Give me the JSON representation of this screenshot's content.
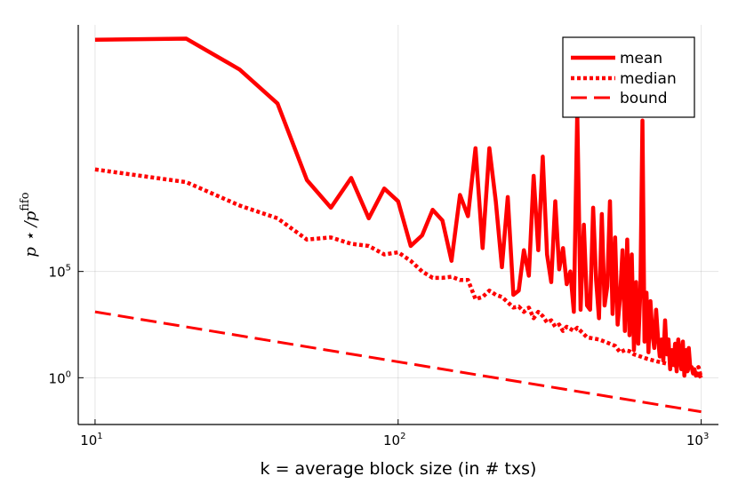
{
  "chart_data": {
    "type": "line",
    "title": "",
    "xlabel": "k = average block size (in # txs)",
    "ylabel": "p⋆ / p^fifo",
    "ylabel_base": "p ⋆ /p",
    "ylabel_sup": "fifo",
    "xscale": "log",
    "yscale": "log",
    "xlim": [
      8.8,
      1140
    ],
    "ylim_log10": [
      -2.2,
      16.6
    ],
    "grid": true,
    "x_ticks": [
      {
        "value": 10,
        "base": "10",
        "exp": "1"
      },
      {
        "value": 100,
        "base": "10",
        "exp": "2"
      },
      {
        "value": 1000,
        "base": "10",
        "exp": "3"
      }
    ],
    "y_ticks": [
      {
        "value": 1,
        "base": "10",
        "exp": "0"
      },
      {
        "value": 100000,
        "base": "10",
        "exp": "5"
      }
    ],
    "legend": {
      "position": "top-right",
      "entries": [
        {
          "label": "mean",
          "style": "solid"
        },
        {
          "label": "median",
          "style": "dotted"
        },
        {
          "label": "bound",
          "style": "dashed"
        }
      ]
    },
    "color": "#ff0000",
    "series": [
      {
        "name": "mean",
        "style": "solid",
        "points": [
          [
            10,
            15.9
          ],
          [
            20,
            15.95
          ],
          [
            30,
            14.5
          ],
          [
            40,
            12.9
          ],
          [
            50,
            9.3
          ],
          [
            60,
            8.0
          ],
          [
            70,
            9.4
          ],
          [
            80,
            7.5
          ],
          [
            90,
            8.9
          ],
          [
            100,
            8.3
          ],
          [
            110,
            6.2
          ],
          [
            120,
            6.7
          ],
          [
            130,
            7.9
          ],
          [
            140,
            7.4
          ],
          [
            150,
            5.5
          ],
          [
            160,
            8.6
          ],
          [
            170,
            7.6
          ],
          [
            180,
            10.8
          ],
          [
            190,
            6.1
          ],
          [
            200,
            10.8
          ],
          [
            210,
            8.3
          ],
          [
            220,
            5.2
          ],
          [
            230,
            8.5
          ],
          [
            240,
            3.9
          ],
          [
            250,
            4.1
          ],
          [
            260,
            6.0
          ],
          [
            270,
            4.8
          ],
          [
            280,
            9.5
          ],
          [
            290,
            6.0
          ],
          [
            300,
            10.4
          ],
          [
            310,
            5.8
          ],
          [
            320,
            4.5
          ],
          [
            330,
            8.3
          ],
          [
            340,
            5.1
          ],
          [
            350,
            6.1
          ],
          [
            360,
            4.4
          ],
          [
            370,
            5.0
          ],
          [
            380,
            3.1
          ],
          [
            390,
            12.5
          ],
          [
            400,
            3.2
          ],
          [
            410,
            7.2
          ],
          [
            420,
            3.4
          ],
          [
            430,
            3.2
          ],
          [
            440,
            8.0
          ],
          [
            450,
            4.6
          ],
          [
            460,
            2.8
          ],
          [
            470,
            7.7
          ],
          [
            480,
            3.4
          ],
          [
            490,
            4.3
          ],
          [
            500,
            8.3
          ],
          [
            510,
            3.0
          ],
          [
            520,
            6.6
          ],
          [
            530,
            2.5
          ],
          [
            540,
            3.8
          ],
          [
            550,
            6.0
          ],
          [
            560,
            2.2
          ],
          [
            570,
            6.5
          ],
          [
            580,
            2.0
          ],
          [
            590,
            5.8
          ],
          [
            600,
            1.3
          ],
          [
            610,
            4.5
          ],
          [
            620,
            1.6
          ],
          [
            630,
            4.1
          ],
          [
            640,
            12.1
          ],
          [
            650,
            1.7
          ],
          [
            660,
            4.0
          ],
          [
            670,
            1.2
          ],
          [
            680,
            3.6
          ],
          [
            690,
            2.1
          ],
          [
            700,
            1.4
          ],
          [
            710,
            3.2
          ],
          [
            720,
            1.9
          ],
          [
            730,
            1.0
          ],
          [
            740,
            1.8
          ],
          [
            750,
            0.8
          ],
          [
            760,
            2.7
          ],
          [
            770,
            1.1
          ],
          [
            780,
            1.8
          ],
          [
            790,
            0.4
          ],
          [
            800,
            1.3
          ],
          [
            810,
            0.6
          ],
          [
            820,
            1.6
          ],
          [
            830,
            0.3
          ],
          [
            840,
            1.8
          ],
          [
            850,
            1.0
          ],
          [
            860,
            0.4
          ],
          [
            870,
            1.7
          ],
          [
            880,
            0.1
          ],
          [
            890,
            1.3
          ],
          [
            900,
            0.3
          ],
          [
            910,
            1.4
          ],
          [
            920,
            0.5
          ],
          [
            930,
            0.5
          ],
          [
            940,
            0.2
          ],
          [
            950,
            0.4
          ],
          [
            960,
            0.1
          ],
          [
            970,
            0.2
          ],
          [
            980,
            0.1
          ],
          [
            990,
            0.1
          ],
          [
            1000,
            0.0
          ]
        ]
      },
      {
        "name": "median",
        "style": "dotted",
        "points": [
          [
            10,
            9.8
          ],
          [
            20,
            9.2
          ],
          [
            30,
            8.1
          ],
          [
            40,
            7.5
          ],
          [
            50,
            6.5
          ],
          [
            60,
            6.6
          ],
          [
            70,
            6.3
          ],
          [
            80,
            6.2
          ],
          [
            90,
            5.8
          ],
          [
            100,
            5.9
          ],
          [
            110,
            5.5
          ],
          [
            120,
            5.0
          ],
          [
            130,
            4.7
          ],
          [
            140,
            4.7
          ],
          [
            150,
            4.75
          ],
          [
            160,
            4.6
          ],
          [
            170,
            4.6
          ],
          [
            180,
            3.7
          ],
          [
            190,
            3.8
          ],
          [
            200,
            4.1
          ],
          [
            210,
            3.9
          ],
          [
            220,
            3.8
          ],
          [
            230,
            3.55
          ],
          [
            240,
            3.3
          ],
          [
            250,
            3.35
          ],
          [
            260,
            3.1
          ],
          [
            270,
            3.3
          ],
          [
            280,
            2.8
          ],
          [
            290,
            3.1
          ],
          [
            300,
            2.9
          ],
          [
            310,
            2.6
          ],
          [
            320,
            2.7
          ],
          [
            330,
            2.4
          ],
          [
            340,
            2.5
          ],
          [
            350,
            2.2
          ],
          [
            360,
            2.4
          ],
          [
            370,
            2.3
          ],
          [
            380,
            2.2
          ],
          [
            390,
            2.35
          ],
          [
            400,
            2.2
          ],
          [
            420,
            1.9
          ],
          [
            440,
            1.85
          ],
          [
            460,
            1.8
          ],
          [
            480,
            1.7
          ],
          [
            500,
            1.6
          ],
          [
            520,
            1.5
          ],
          [
            540,
            1.2
          ],
          [
            560,
            1.3
          ],
          [
            580,
            1.25
          ],
          [
            600,
            1.1
          ],
          [
            630,
            1.0
          ],
          [
            660,
            0.9
          ],
          [
            700,
            0.8
          ],
          [
            750,
            0.7
          ],
          [
            800,
            0.6
          ],
          [
            850,
            0.5
          ],
          [
            900,
            0.4
          ],
          [
            950,
            0.3
          ],
          [
            980,
            0.5
          ],
          [
            1000,
            0.0
          ]
        ]
      },
      {
        "name": "bound",
        "style": "dashed",
        "points": [
          [
            10,
            3.1
          ],
          [
            1000,
            -1.6
          ]
        ]
      }
    ]
  }
}
